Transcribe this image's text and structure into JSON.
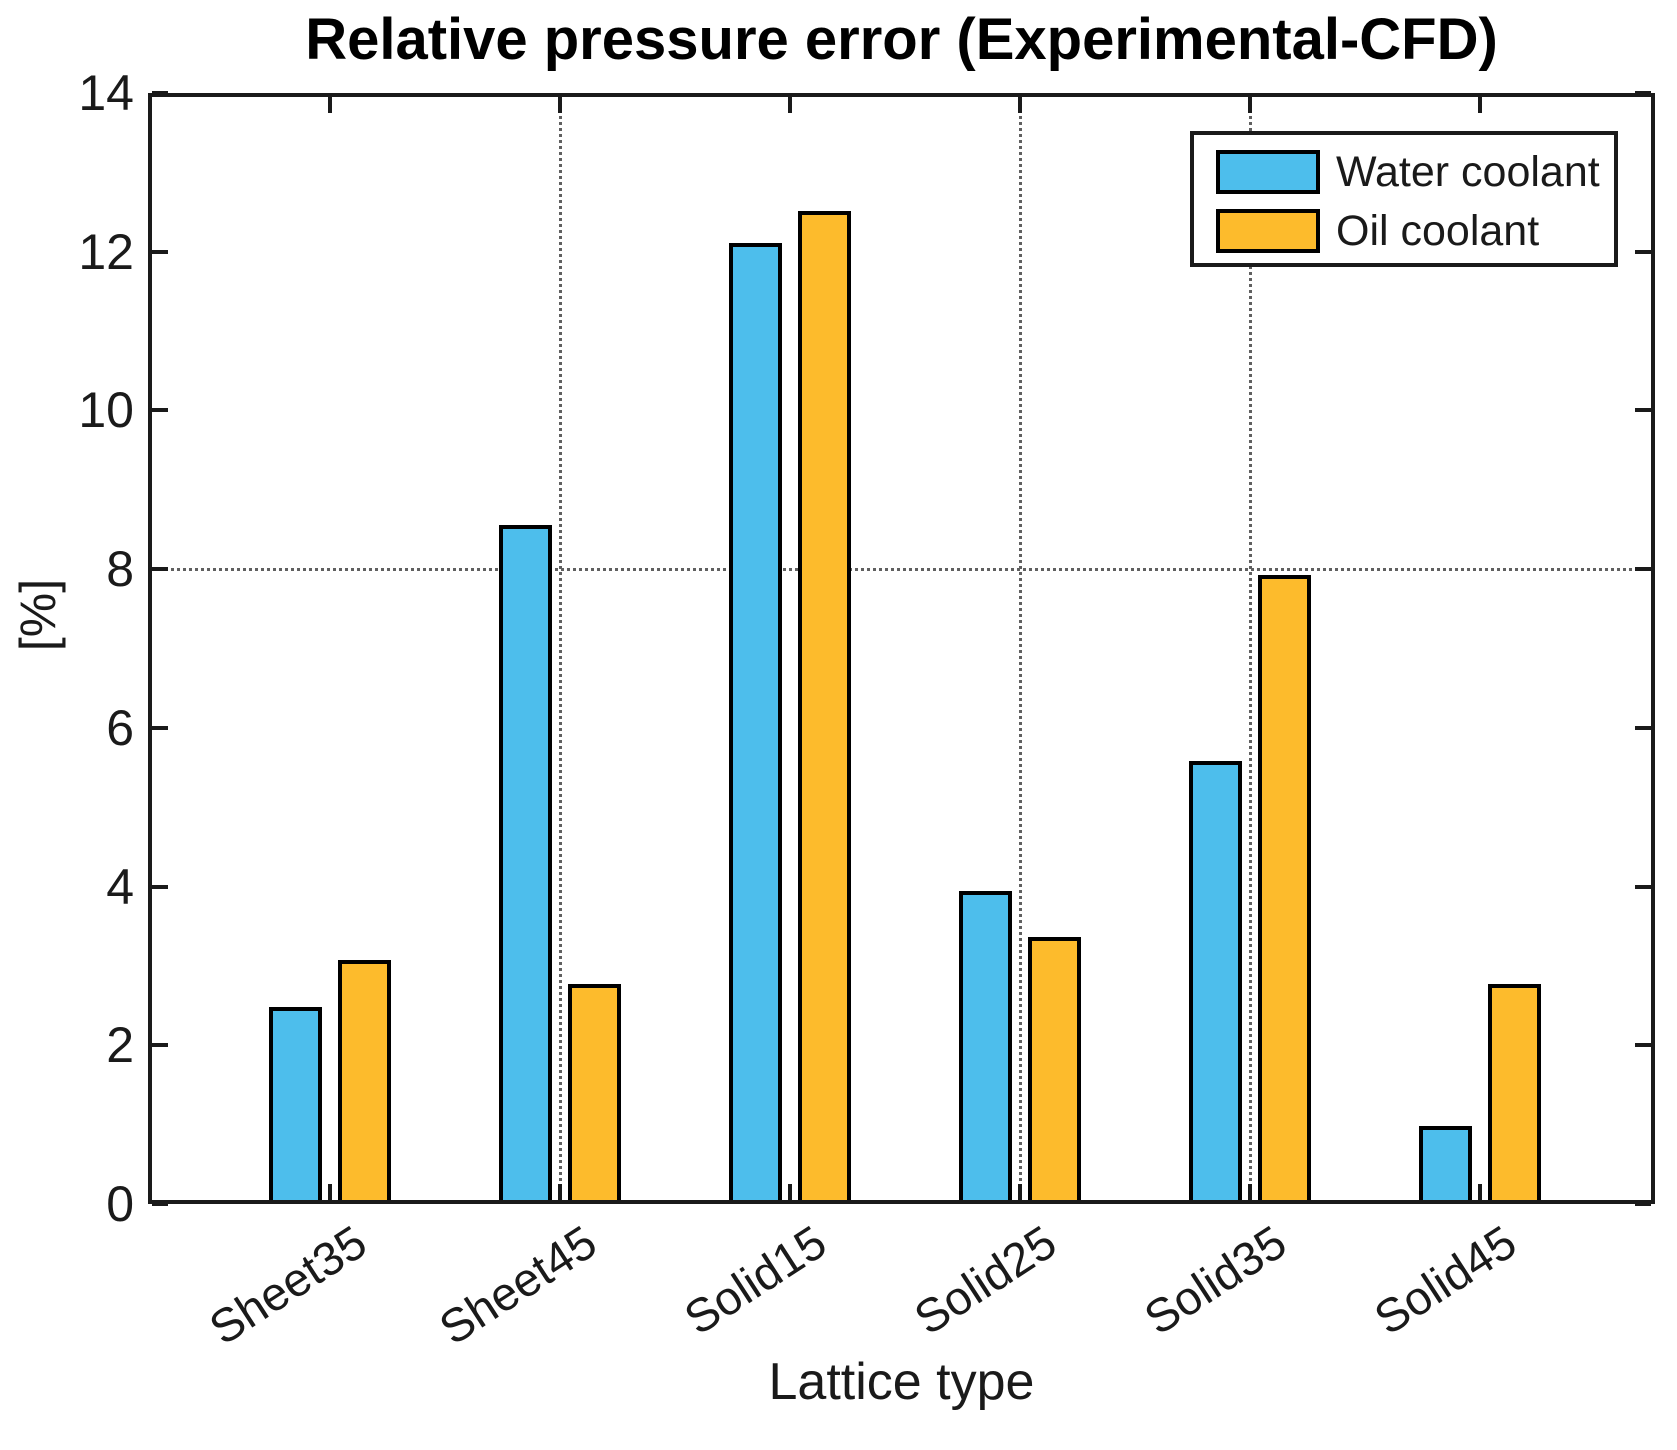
{
  "chart_data": {
    "type": "bar",
    "title": "Relative pressure error (Experimental-CFD)",
    "xlabel": "Lattice type",
    "ylabel": "[%]",
    "categories": [
      "Sheet35",
      "Sheet45",
      "Solid15",
      "Solid25",
      "Solid35",
      "Solid45"
    ],
    "series": [
      {
        "name": "Water coolant",
        "color": "#4DBEEC",
        "values": [
          2.48,
          8.56,
          12.11,
          3.94,
          5.58,
          0.98
        ]
      },
      {
        "name": "Oil coolant",
        "color": "#FDBB2C",
        "values": [
          3.07,
          2.77,
          12.51,
          3.36,
          7.93,
          2.77
        ]
      }
    ],
    "ylim": [
      0,
      14
    ],
    "yticks": [
      0,
      2,
      4,
      6,
      8,
      10,
      12,
      14
    ],
    "grid": {
      "horizontal_at": [
        8
      ],
      "vertical_at_categories": [
        "Sheet45",
        "Solid25",
        "Solid35"
      ]
    },
    "legend_position": "top-right",
    "bar_edge_color": "#000000",
    "axis_color": "#1a1a1a"
  }
}
